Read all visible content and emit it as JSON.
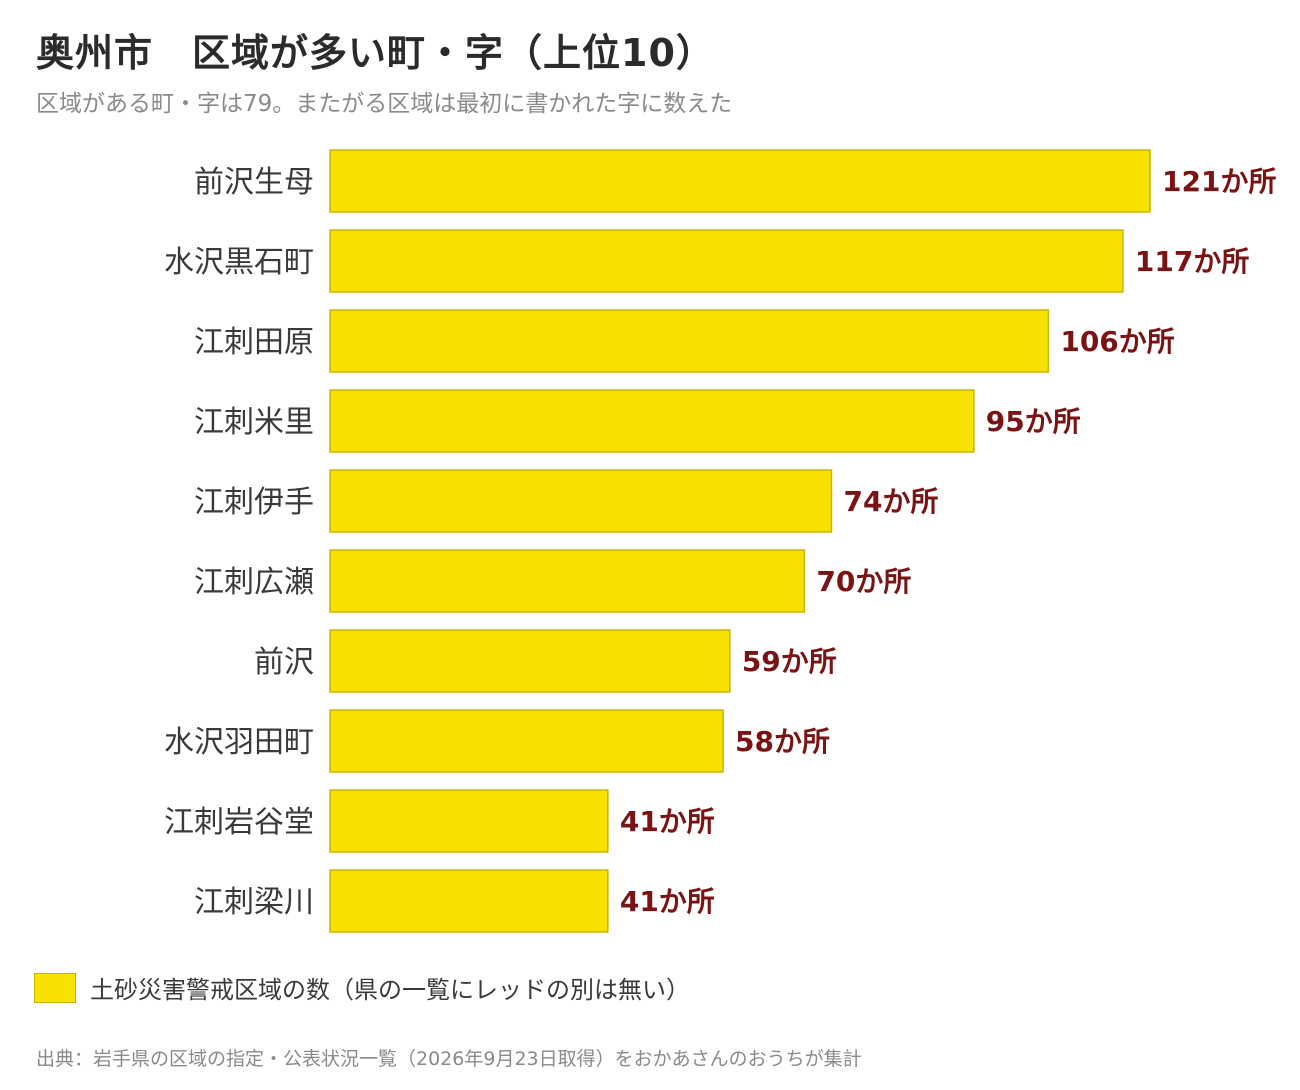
{
  "title": "奥州市　区域が多い町・字（上位10）",
  "subtitle": "区域がある町・字は79。またがる区域は最初に書かれた字に数えた",
  "legend": {
    "label": "土砂災害警戒区域の数（県の一覧にレッドの別は無い）",
    "color": "#f7e100"
  },
  "source": "出典：岩手県の区域の指定・公表状況一覧（2026年9月23日取得）をおかあさんのおうちが集計",
  "colors": {
    "bar": "#f7e100",
    "bar_border": "#c8b400",
    "value_label": "#7a1414"
  },
  "chart_data": {
    "type": "bar",
    "orientation": "horizontal",
    "categories": [
      "前沢生母",
      "水沢黒石町",
      "江刺田原",
      "江刺米里",
      "江刺伊手",
      "江刺広瀬",
      "前沢",
      "水沢羽田町",
      "江刺岩谷堂",
      "江刺梁川"
    ],
    "values": [
      121,
      117,
      106,
      95,
      74,
      70,
      59,
      58,
      41,
      41
    ],
    "value_labels": [
      "121か所",
      "117か所",
      "106か所",
      "95か所",
      "74か所",
      "70か所",
      "59か所",
      "58か所",
      "41か所",
      "41か所"
    ],
    "series": [
      {
        "name": "土砂災害警戒区域の数（県の一覧にレッドの別は無い）",
        "values": [
          121,
          117,
          106,
          95,
          74,
          70,
          59,
          58,
          41,
          41
        ]
      }
    ],
    "xlim": [
      0,
      121
    ],
    "grid": false,
    "legend_position": "bottom-left"
  }
}
